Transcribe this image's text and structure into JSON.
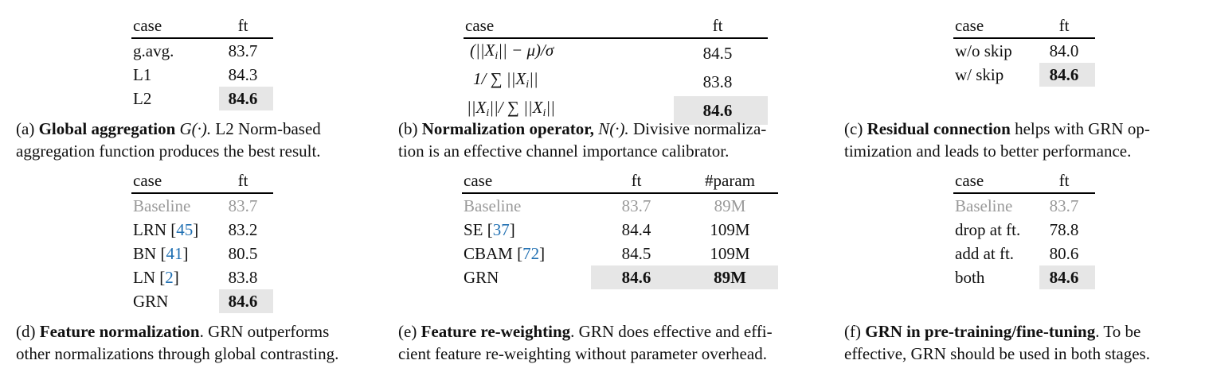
{
  "panel_a": {
    "headers": [
      "case",
      "ft"
    ],
    "rows": [
      {
        "case": "g.avg.",
        "ft": "83.7"
      },
      {
        "case": "L1",
        "ft": "84.3"
      },
      {
        "case": "L2",
        "ft": "84.6"
      }
    ],
    "caption_prefix": "(a)",
    "caption_bold": "Global aggregation",
    "caption_math": "G(·).",
    "caption_rest_line1": " L2 Norm-based",
    "caption_line2": "aggregation function produces the best result."
  },
  "panel_b": {
    "headers": [
      "case",
      "ft"
    ],
    "rows": [
      {
        "ft": "84.5"
      },
      {
        "ft": "83.8"
      },
      {
        "ft": "84.6"
      }
    ],
    "caption_prefix": "(b)",
    "caption_bold": "Normalization operator,",
    "caption_math": "N(·).",
    "caption_rest_line1": " Divisive normaliza-",
    "caption_line2": "tion is an effective channel importance calibrator."
  },
  "panel_c": {
    "headers": [
      "case",
      "ft"
    ],
    "rows": [
      {
        "case": "w/o skip",
        "ft": "84.0"
      },
      {
        "case": "w/ skip",
        "ft": "84.6"
      }
    ],
    "caption_prefix": "(c)",
    "caption_bold": "Residual connection",
    "caption_rest_line1": " helps with GRN op-",
    "caption_line2": "timization and leads to better performance."
  },
  "panel_d": {
    "headers": [
      "case",
      "ft"
    ],
    "rows": [
      {
        "case": "Baseline",
        "cite": "",
        "ft": "83.7"
      },
      {
        "case": "LRN",
        "cite": "45",
        "ft": "83.2"
      },
      {
        "case": "BN",
        "cite": "41",
        "ft": "80.5"
      },
      {
        "case": "LN",
        "cite": "2",
        "ft": "83.8"
      },
      {
        "case": "GRN",
        "cite": "",
        "ft": "84.6"
      }
    ],
    "caption_prefix": "(d)",
    "caption_bold": "Feature normalization",
    "caption_rest_line1": ". GRN outperforms",
    "caption_line2": "other normalizations through global contrasting."
  },
  "panel_e": {
    "headers": [
      "case",
      "ft",
      "#param"
    ],
    "rows": [
      {
        "case": "Baseline",
        "cite": "",
        "ft": "83.7",
        "param": "89M"
      },
      {
        "case": "SE",
        "cite": "37",
        "ft": "84.4",
        "param": "109M"
      },
      {
        "case": "CBAM",
        "cite": "72",
        "ft": "84.5",
        "param": "109M"
      },
      {
        "case": "GRN",
        "cite": "",
        "ft": "84.6",
        "param": "89M"
      }
    ],
    "caption_prefix": "(e)",
    "caption_bold": "Feature re-weighting",
    "caption_rest_line1": ". GRN does effective and effi-",
    "caption_line2": "cient feature re-weighting without parameter overhead."
  },
  "panel_f": {
    "headers": [
      "case",
      "ft"
    ],
    "rows": [
      {
        "case": "Baseline",
        "ft": "83.7"
      },
      {
        "case": "drop at ft.",
        "ft": "78.8"
      },
      {
        "case": "add at ft.",
        "ft": "80.6"
      },
      {
        "case": "both",
        "ft": "84.6"
      }
    ],
    "caption_prefix": "(f)",
    "caption_bold": "GRN in pre-training/fine-tuning",
    "caption_rest_line1": ". To be",
    "caption_line2": "effective, GRN should be used in both stages."
  }
}
